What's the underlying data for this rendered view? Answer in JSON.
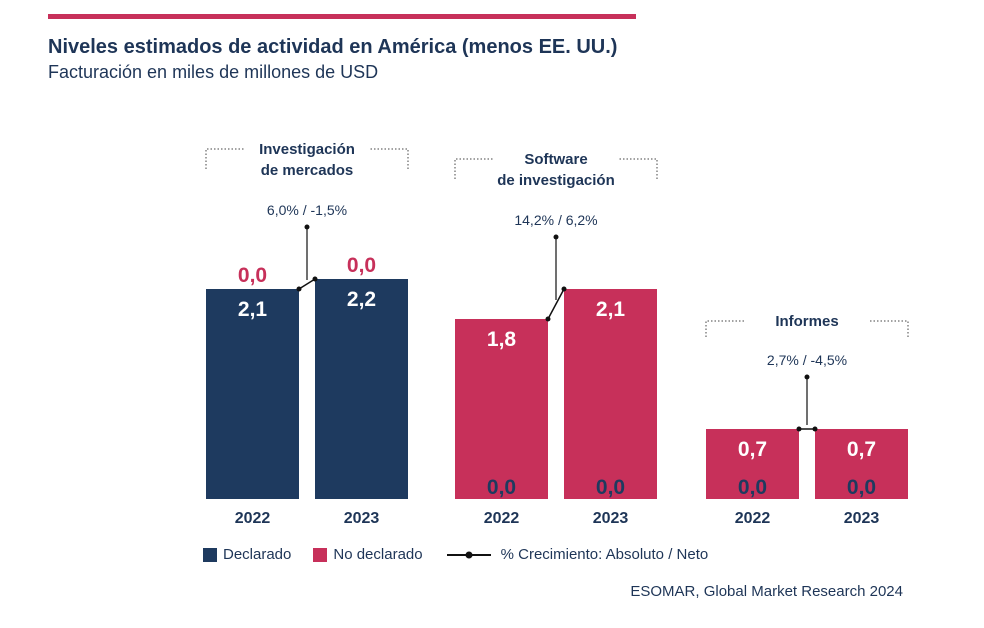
{
  "header": {
    "title": "Niveles estimados de actividad en América (menos EE. UU.)",
    "subtitle": "Facturación en miles de millones de USD"
  },
  "colors": {
    "declared": "#1e3a5f",
    "undeclared": "#c7305a",
    "accent_rule": "#c7305a",
    "text": "#1e3557"
  },
  "legend": {
    "declared": "Declarado",
    "undeclared": "No declarado",
    "growth": "% Crecimiento: Absoluto / Neto"
  },
  "source": "ESOMAR, Global Market Research 2024",
  "chart_data": {
    "type": "bar",
    "stacked": true,
    "categories": [
      "2022",
      "2023"
    ],
    "groups": [
      {
        "name": "Investigación de mercados",
        "name_lines": [
          "Investigación",
          "de mercados"
        ],
        "growth": "6,0% / -1,5%",
        "color_key": "declared",
        "values": [
          {
            "year": "2022",
            "main": 2.1,
            "main_label": "2,1",
            "other": 0.0,
            "other_label": "0,0"
          },
          {
            "year": "2023",
            "main": 2.2,
            "main_label": "2,2",
            "other": 0.0,
            "other_label": "0,0"
          }
        ]
      },
      {
        "name": "Software de investigación",
        "name_lines": [
          "Software",
          "de investigación"
        ],
        "growth": "14,2% / 6,2%",
        "color_key": "undeclared",
        "values": [
          {
            "year": "2022",
            "main": 1.8,
            "main_label": "1,8",
            "other": 0.0,
            "other_label": "0,0"
          },
          {
            "year": "2023",
            "main": 2.1,
            "main_label": "2,1",
            "other": 0.0,
            "other_label": "0,0"
          }
        ]
      },
      {
        "name": "Informes",
        "name_lines": [
          "Informes"
        ],
        "growth": "2,7% / -4,5%",
        "color_key": "undeclared",
        "values": [
          {
            "year": "2022",
            "main": 0.7,
            "main_label": "0,7",
            "other": 0.0,
            "other_label": "0,0"
          },
          {
            "year": "2023",
            "main": 0.7,
            "main_label": "0,7",
            "other": 0.0,
            "other_label": "0,0"
          }
        ]
      }
    ],
    "series": [
      {
        "name": "Declarado"
      },
      {
        "name": "No declarado"
      }
    ]
  }
}
